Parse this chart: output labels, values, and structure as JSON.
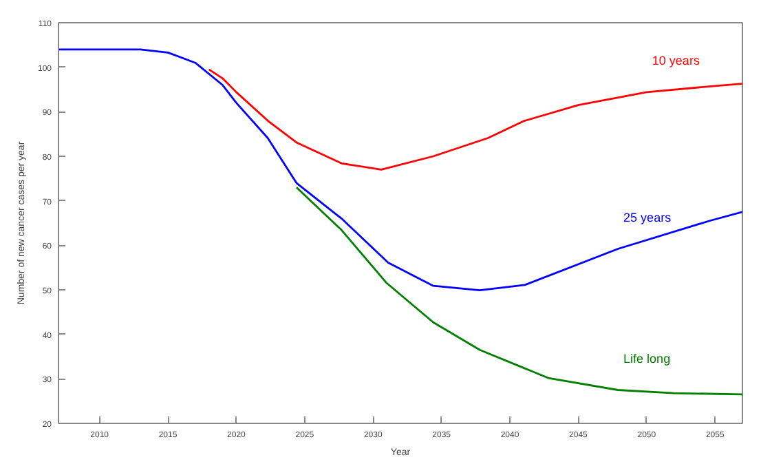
{
  "chart_data": {
    "type": "line",
    "xlabel": "Year",
    "ylabel": "Number of new cancer cases per year",
    "xlim": [
      2007,
      2057
    ],
    "ylim": [
      20,
      110
    ],
    "xticks": [
      2010,
      2015,
      2020,
      2025,
      2030,
      2035,
      2040,
      2045,
      2050,
      2055
    ],
    "yticks": [
      20,
      30,
      40,
      50,
      60,
      70,
      80,
      90,
      100,
      110
    ],
    "grid": false,
    "marker": "none",
    "line_style": "solid",
    "series": [
      {
        "name": "10 years",
        "color": "#ff0000",
        "x": [
          2018,
          2019,
          2020,
          2022.3,
          2024.4,
          2027.7,
          2030.6,
          2034.4,
          2038.4,
          2041,
          2045,
          2050,
          2055,
          2057
        ],
        "values": [
          99.5,
          97.5,
          94.4,
          88,
          83.1,
          78.4,
          77,
          80,
          84.1,
          87.9,
          91.5,
          94.4,
          95.8,
          96.3
        ]
      },
      {
        "name": "Life long",
        "color": "#008000",
        "x": [
          2024.4,
          2027.7,
          2031,
          2034.4,
          2037.8,
          2042.8,
          2047.9,
          2052,
          2057
        ],
        "values": [
          73,
          63.4,
          51.5,
          42.7,
          36.5,
          30.2,
          27.5,
          26.8,
          26.5
        ]
      },
      {
        "name": "25 years",
        "color": "#0000ff",
        "x": [
          2007,
          2010,
          2013,
          2015,
          2017,
          2019,
          2020,
          2022.3,
          2024.4,
          2027.7,
          2031.1,
          2034.4,
          2037.8,
          2041.1,
          2047.9,
          2054.6,
          2057
        ],
        "values": [
          104,
          104,
          104,
          103.3,
          101,
          96,
          92,
          84.1,
          74,
          66,
          56.1,
          50.9,
          49.9,
          51.1,
          59.2,
          65.5,
          67.5
        ]
      }
    ]
  }
}
